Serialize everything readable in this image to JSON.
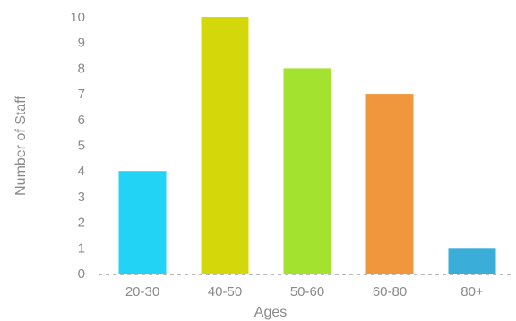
{
  "chart_data": {
    "type": "bar",
    "title": "",
    "xlabel": "Ages",
    "ylabel": "Number of Staff",
    "categories": [
      "20-30",
      "40-50",
      "50-60",
      "60-80",
      "80+"
    ],
    "values": [
      4,
      10,
      8,
      7,
      1
    ],
    "colors": [
      "#22d3f5",
      "#d4d80a",
      "#a3e22f",
      "#f0963d",
      "#3aaed8"
    ],
    "ylim": [
      0,
      10
    ],
    "yticks": [
      "0",
      "1",
      "2",
      "3",
      "4",
      "5",
      "6",
      "7",
      "8",
      "9",
      "10"
    ],
    "grid": false,
    "legend": "none"
  }
}
